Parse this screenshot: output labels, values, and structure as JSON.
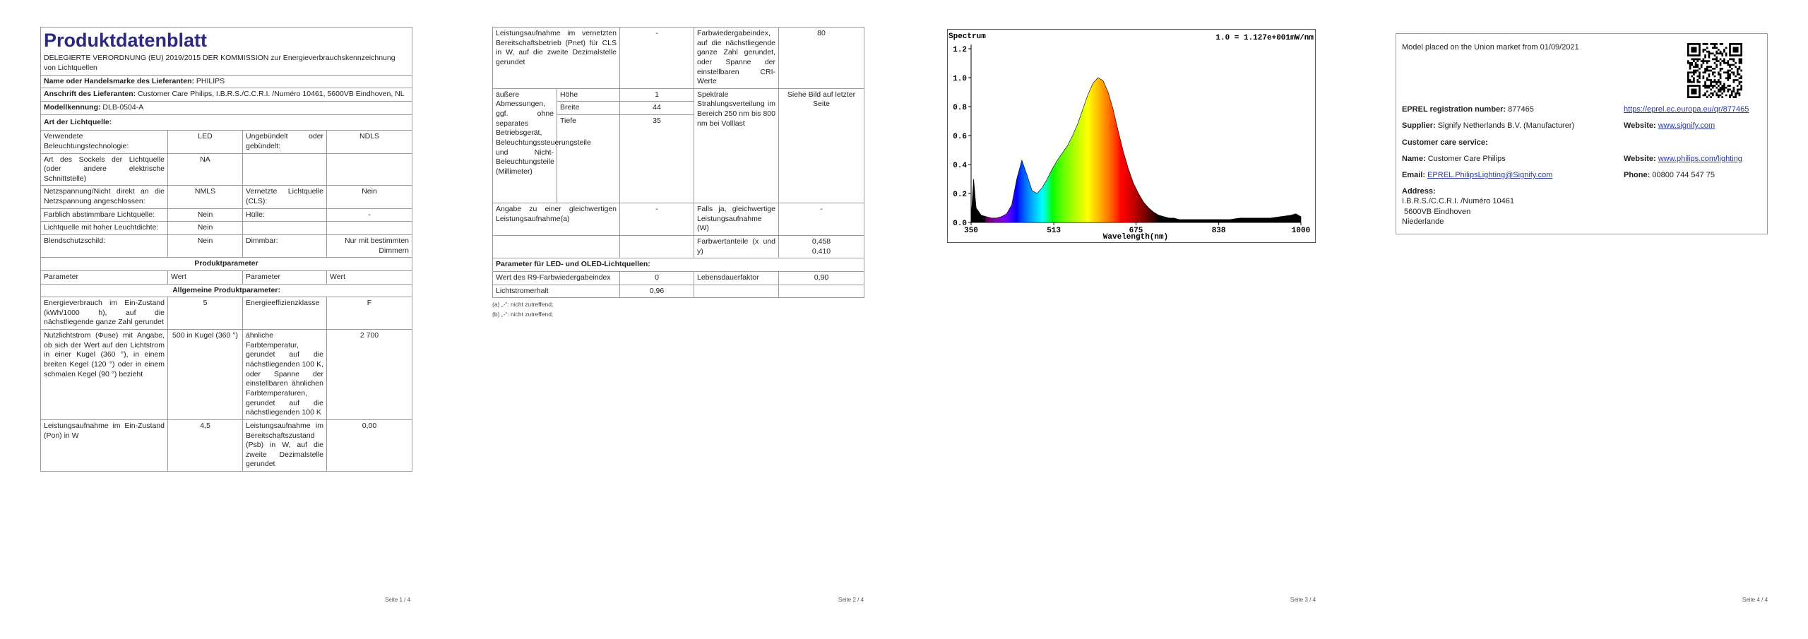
{
  "pages": [
    {
      "title": "Produktdatenblatt",
      "regulation": "DELEGIERTE VERORDNUNG (EU) 2019/2015 DER KOMMISSION zur Energieverbrauchskennzeichnung von Lichtquellen",
      "supplier_rows": [
        [
          "Name oder Handelsmarke des Lieferanten:",
          "PHILIPS"
        ],
        [
          "Anschrift des Lieferanten:",
          "Customer Care Philips, I.B.R.S./C.C.R.I. /Numéro 10461, 5600VB Eindhoven, NL"
        ],
        [
          "Modellkennung:",
          "DLB-0504-A"
        ]
      ],
      "section": "Art der Lichtquelle:",
      "rows": [
        [
          "Verwendete Beleuchtungstechnologie:",
          "LED",
          "Ungebündelt oder gebündelt:",
          "NDLS"
        ],
        [
          "Art des Sockels der Lichtquelle (oder andere elektrische Schnittstelle)",
          "NA"
        ],
        [
          "Netzspannung/Nicht direkt an die Netzspannung angeschlossen:",
          "NMLS",
          "Vernetzte Lichtquelle (CLS):",
          "Nein"
        ],
        [
          "Farblich abstimmbare Lichtquelle:",
          "Nein",
          "Hülle:",
          "-"
        ],
        [
          "Lichtquelle mit hoher Leuchtdichte:",
          "Nein"
        ],
        [
          "Blendschutzschild:",
          "Nein",
          "Dimmbar:",
          "Nur mit bestimmten Dimmern"
        ]
      ],
      "product_heading": "Produktparameter",
      "header": [
        "Parameter",
        "Wert",
        "Parameter",
        "Wert"
      ],
      "general_heading": "Allgemeine Produktparameter:",
      "param_rows": [
        [
          "Energieverbrauch im Ein-Zustand (kWh/1000 h), auf die nächstliegende ganze Zahl gerundet",
          "5",
          "Energieeffizienzklasse",
          "F"
        ],
        [
          "Nutzlichtstrom (Φuse) mit Angabe, ob sich der Wert auf den Lichtstrom in einer Kugel (360 °), in einem breiten Kegel (120 °) oder in einem schmalen Kegel (90 °) bezieht",
          "500 in Kugel (360 °)",
          "ähnliche Farbtemperatur, gerundet auf die nächstliegenden 100 K, oder Spanne der einstellbaren ähnlichen Farbtemperaturen, gerundet auf die nächstliegenden 100 K",
          "2 700"
        ],
        [
          "Leistungsaufnahme im Ein-Zustand (Pon) in W",
          "4,5",
          "Leistungsaufnahme im Bereitschaftszustand (Psb) in W, auf die zweite Dezimalstelle gerundet",
          "0,00"
        ]
      ],
      "footer": "Seite 1 / 4"
    },
    {
      "rows": [
        [
          "Leistungsaufnahme im vernetzten Bereitschaftsbetrieb (Pnet) für CLS in W, auf die zweite Dezimalstelle gerundet",
          "-",
          "Farbwiedergabeindex, auf die nächstliegende ganze Zahl gerundet, oder Spanne der einstellbaren CRI-Werte",
          "80"
        ]
      ],
      "dimensions": {
        "label": "äußere Abmessungen, ggf. ohne separates Betriebsgerät, Beleuchtungssteuerungsteile und Nicht-Beleuchtungsteile (Millimeter)",
        "items": [
          [
            "Höhe",
            "1"
          ],
          [
            "Breite",
            "44"
          ],
          [
            "Tiefe",
            "35"
          ]
        ],
        "right": [
          "Spektrale Strahlungsverteilung im Bereich 250 nm bis 800 nm bei Volllast",
          "Siehe Bild auf letzter Seite"
        ]
      },
      "rows2": [
        [
          "Angabe zu einer gleichwertigen Leistungsaufnahme(a)",
          "-",
          "Falls ja, gleichwertige Leistungsaufnahme (W)",
          "-"
        ]
      ],
      "chromaticity": {
        "label": "Farbwertanteile (x und y)",
        "x": "0,458",
        "y": "0,410"
      },
      "led_heading": "Parameter für LED- und OLED-Lichtquellen:",
      "led_rows": [
        [
          "Wert des R9-Farbwiedergabeindex",
          "0",
          "Lebensdauerfaktor",
          "0,90"
        ],
        [
          "Lichtstromerhalt",
          "0,96"
        ]
      ],
      "notes": [
        "(a) „-“: nicht zutreffend;",
        "(b) „-“: nicht zutreffend;"
      ],
      "footer": "Seite 2 / 4"
    },
    {
      "footer": "Seite 3 / 4"
    },
    {
      "market": "Model placed on the Union market from 01/09/2021",
      "eprel": {
        "label": "EPREL registration number:",
        "value": "877465",
        "link": "https://eprel.ec.europa.eu/qr/877465"
      },
      "supplier": {
        "label": "Supplier:",
        "value": "Signify Netherlands B.V. (Manufacturer)",
        "website_label": "Website:",
        "website": "www.signify.com"
      },
      "care_heading": "Customer care service:",
      "name": {
        "label": "Name:",
        "value": "Customer Care Philips",
        "website_label": "Website:",
        "website": "www.philips.com/lighting"
      },
      "email": {
        "label": "Email:",
        "value": "EPREL.PhilipsLighting@Signify.com",
        "phone_label": "Phone:",
        "phone": "00800 744 547 75"
      },
      "address": {
        "label": "Address:",
        "lines": [
          "I.B.R.S./C.C.R.I. /Numéro 10461",
          "5600VB Eindhoven",
          "Niederlande"
        ]
      },
      "footer": "Seite 4 / 4"
    }
  ],
  "chart_data": {
    "type": "area",
    "title": "Spectrum",
    "annotation": "1.0 = 1.127e+001mW/nm",
    "x_label": "Wavelength(nm)",
    "x": [
      350,
      355,
      360,
      370,
      380,
      390,
      400,
      410,
      420,
      430,
      440,
      450,
      460,
      470,
      480,
      490,
      500,
      510,
      520,
      530,
      540,
      550,
      560,
      570,
      580,
      590,
      600,
      610,
      620,
      630,
      640,
      650,
      660,
      670,
      680,
      690,
      700,
      710,
      720,
      730,
      740,
      750,
      760,
      780,
      800,
      820,
      840,
      860,
      880,
      900,
      920,
      940,
      960,
      980,
      990,
      1000
    ],
    "values": [
      0.03,
      0.3,
      0.1,
      0.05,
      0.04,
      0.03,
      0.03,
      0.04,
      0.06,
      0.12,
      0.3,
      0.43,
      0.33,
      0.22,
      0.2,
      0.24,
      0.3,
      0.37,
      0.43,
      0.48,
      0.53,
      0.6,
      0.68,
      0.78,
      0.88,
      0.96,
      1.0,
      0.98,
      0.9,
      0.78,
      0.63,
      0.49,
      0.37,
      0.27,
      0.2,
      0.14,
      0.1,
      0.07,
      0.05,
      0.04,
      0.03,
      0.03,
      0.02,
      0.02,
      0.02,
      0.02,
      0.02,
      0.02,
      0.03,
      0.03,
      0.03,
      0.03,
      0.04,
      0.05,
      0.06,
      0.04
    ],
    "xlim": [
      350,
      1000
    ],
    "xticks": [
      350,
      513,
      675,
      838,
      1000
    ],
    "ylim": [
      0,
      1.2
    ],
    "yticks": [
      {
        "value": 0,
        "label": "0.0"
      },
      0.2,
      0.4,
      0.6,
      0.8,
      {
        "value": 1,
        "label": "1.0"
      },
      1.2
    ]
  }
}
